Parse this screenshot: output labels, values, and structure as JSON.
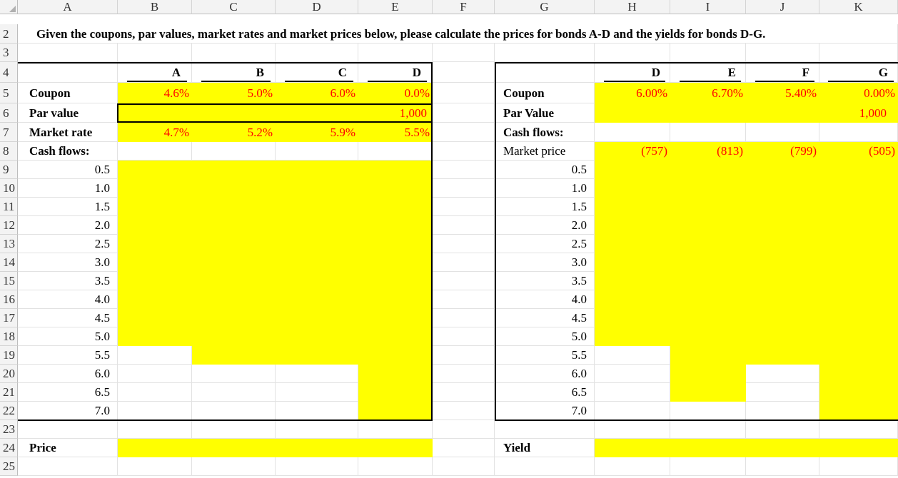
{
  "columns": [
    "A",
    "B",
    "C",
    "D",
    "E",
    "F",
    "G",
    "H",
    "I",
    "J",
    "K"
  ],
  "rows": [
    "2",
    "3",
    "4",
    "5",
    "6",
    "7",
    "8",
    "9",
    "10",
    "11",
    "12",
    "13",
    "14",
    "15",
    "16",
    "17",
    "18",
    "19",
    "20",
    "21",
    "22",
    "23",
    "24",
    "25"
  ],
  "instruction": "Given the coupons, par values, market rates and market prices below, please calculate the prices for bonds A-D and the yields for bonds D-G.",
  "left": {
    "headers": [
      "A",
      "B",
      "C",
      "D"
    ],
    "coupon_label": "Coupon",
    "coupons": [
      "4.6%",
      "5.0%",
      "6.0%",
      "0.0%"
    ],
    "par_label": "Par value",
    "par_d": "1,000",
    "rate_label": "Market rate",
    "rates": [
      "4.7%",
      "5.2%",
      "5.9%",
      "5.5%"
    ],
    "cash_label": "Cash flows:",
    "periods": [
      "0.5",
      "1.0",
      "1.5",
      "2.0",
      "2.5",
      "3.0",
      "3.5",
      "4.0",
      "4.5",
      "5.0",
      "5.5",
      "6.0",
      "6.5",
      "7.0"
    ],
    "price_label": "Price"
  },
  "right": {
    "headers": [
      "D",
      "E",
      "F",
      "G"
    ],
    "coupon_label": "Coupon",
    "coupons": [
      "6.00%",
      "6.70%",
      "5.40%",
      "0.00%"
    ],
    "par_label": "Par Value",
    "par_g": "1,000",
    "cash_label": "Cash flows:",
    "price_label": "Market price",
    "prices": [
      "(757)",
      "(813)",
      "(799)",
      "(505)"
    ],
    "periods": [
      "0.5",
      "1.0",
      "1.5",
      "2.0",
      "2.5",
      "3.0",
      "3.5",
      "4.0",
      "4.5",
      "5.0",
      "5.5",
      "6.0",
      "6.5",
      "7.0"
    ],
    "yield_label": "Yield"
  },
  "colors": {
    "highlight": "#ffff00",
    "input_text": "#ff0000",
    "header_bg": "#f3f3f3"
  }
}
